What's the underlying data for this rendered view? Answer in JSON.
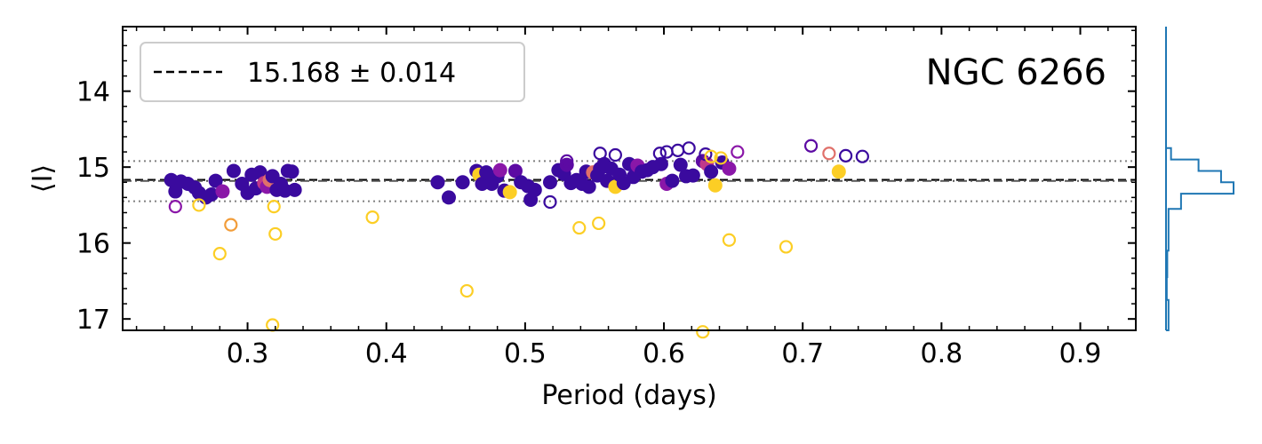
{
  "chart_data": {
    "type": "scatter",
    "title": "",
    "annotation": "NGC 6266",
    "xlabel": "Period (days)",
    "ylabel": "⟨I⟩",
    "xlim": [
      0.21,
      0.94
    ],
    "ylim": [
      17.15,
      13.15
    ],
    "y_inverted": true,
    "xticks": [
      0.3,
      0.4,
      0.5,
      0.6,
      0.7,
      0.8,
      0.9
    ],
    "xtick_labels": [
      "0.3",
      "0.4",
      "0.5",
      "0.6",
      "0.7",
      "0.8",
      "0.9"
    ],
    "yticks": [
      14,
      15,
      16,
      17
    ],
    "ytick_labels": [
      "14",
      "15",
      "16",
      "17"
    ],
    "grid": false,
    "legend": {
      "location": "top-left",
      "label": "15.168 ± 0.014"
    },
    "reference_lines": [
      {
        "value": 15.168,
        "style": "dashed",
        "color": "#000000"
      },
      {
        "value": 15.182,
        "style": "dash-dot",
        "color": "#555555"
      },
      {
        "value": 14.92,
        "style": "dotted",
        "color": "#808080"
      },
      {
        "value": 15.45,
        "style": "dotted",
        "color": "#808080"
      }
    ],
    "colors": {
      "c1": "#3a0a9e",
      "c2": "#5c0aa3",
      "c3": "#8a17a8",
      "c4": "#c0398a",
      "c5": "#e0706a",
      "c6": "#f29d3a",
      "c7": "#fcce25"
    },
    "points": [
      {
        "x": 0.245,
        "y": 15.17,
        "c": "c1",
        "f": true
      },
      {
        "x": 0.248,
        "y": 15.32,
        "c": "c1",
        "f": true
      },
      {
        "x": 0.252,
        "y": 15.19,
        "c": "c1",
        "f": true
      },
      {
        "x": 0.257,
        "y": 15.22,
        "c": "c1",
        "f": true
      },
      {
        "x": 0.262,
        "y": 15.27,
        "c": "c1",
        "f": true
      },
      {
        "x": 0.265,
        "y": 15.34,
        "c": "c1",
        "f": true
      },
      {
        "x": 0.27,
        "y": 15.4,
        "c": "c1",
        "f": true
      },
      {
        "x": 0.274,
        "y": 15.36,
        "c": "c1",
        "f": true
      },
      {
        "x": 0.277,
        "y": 15.18,
        "c": "c1",
        "f": true
      },
      {
        "x": 0.282,
        "y": 15.32,
        "c": "c3",
        "f": true
      },
      {
        "x": 0.29,
        "y": 15.05,
        "c": "c1",
        "f": true
      },
      {
        "x": 0.296,
        "y": 15.22,
        "c": "c1",
        "f": true
      },
      {
        "x": 0.3,
        "y": 15.34,
        "c": "c1",
        "f": true
      },
      {
        "x": 0.303,
        "y": 15.1,
        "c": "c1",
        "f": true
      },
      {
        "x": 0.306,
        "y": 15.28,
        "c": "c1",
        "f": true
      },
      {
        "x": 0.309,
        "y": 15.07,
        "c": "c1",
        "f": true
      },
      {
        "x": 0.312,
        "y": 15.21,
        "c": "c4",
        "f": true
      },
      {
        "x": 0.314,
        "y": 15.26,
        "c": "c3",
        "f": true
      },
      {
        "x": 0.316,
        "y": 15.17,
        "c": "c5",
        "f": true
      },
      {
        "x": 0.318,
        "y": 15.12,
        "c": "c1",
        "f": true
      },
      {
        "x": 0.321,
        "y": 15.3,
        "c": "c1",
        "f": true
      },
      {
        "x": 0.324,
        "y": 15.22,
        "c": "c1",
        "f": true
      },
      {
        "x": 0.327,
        "y": 15.31,
        "c": "c1",
        "f": true
      },
      {
        "x": 0.329,
        "y": 15.05,
        "c": "c1",
        "f": true
      },
      {
        "x": 0.332,
        "y": 15.06,
        "c": "c1",
        "f": true
      },
      {
        "x": 0.334,
        "y": 15.3,
        "c": "c1",
        "f": true
      },
      {
        "x": 0.248,
        "y": 15.52,
        "c": "c3",
        "f": false
      },
      {
        "x": 0.265,
        "y": 15.5,
        "c": "c7",
        "f": false
      },
      {
        "x": 0.288,
        "y": 15.76,
        "c": "c6",
        "f": false
      },
      {
        "x": 0.28,
        "y": 16.14,
        "c": "c7",
        "f": false
      },
      {
        "x": 0.319,
        "y": 15.52,
        "c": "c7",
        "f": false
      },
      {
        "x": 0.32,
        "y": 15.88,
        "c": "c7",
        "f": false
      },
      {
        "x": 0.318,
        "y": 17.08,
        "c": "c7",
        "f": false
      },
      {
        "x": 0.39,
        "y": 15.66,
        "c": "c7",
        "f": false
      },
      {
        "x": 0.437,
        "y": 15.2,
        "c": "c1",
        "f": true
      },
      {
        "x": 0.445,
        "y": 15.4,
        "c": "c1",
        "f": true
      },
      {
        "x": 0.455,
        "y": 15.2,
        "c": "c1",
        "f": true
      },
      {
        "x": 0.465,
        "y": 15.05,
        "c": "c1",
        "f": true
      },
      {
        "x": 0.467,
        "y": 15.1,
        "c": "c7",
        "f": true
      },
      {
        "x": 0.469,
        "y": 15.22,
        "c": "c1",
        "f": true
      },
      {
        "x": 0.472,
        "y": 15.07,
        "c": "c1",
        "f": true
      },
      {
        "x": 0.476,
        "y": 15.22,
        "c": "c1",
        "f": true
      },
      {
        "x": 0.48,
        "y": 15.12,
        "c": "c1",
        "f": true
      },
      {
        "x": 0.482,
        "y": 15.04,
        "c": "c3",
        "f": true
      },
      {
        "x": 0.485,
        "y": 15.31,
        "c": "c1",
        "f": true
      },
      {
        "x": 0.489,
        "y": 15.33,
        "c": "c7",
        "f": true
      },
      {
        "x": 0.493,
        "y": 15.05,
        "c": "c2",
        "f": true
      },
      {
        "x": 0.497,
        "y": 15.2,
        "c": "c1",
        "f": true
      },
      {
        "x": 0.502,
        "y": 15.25,
        "c": "c1",
        "f": true
      },
      {
        "x": 0.504,
        "y": 15.43,
        "c": "c1",
        "f": true
      },
      {
        "x": 0.507,
        "y": 15.3,
        "c": "c1",
        "f": true
      },
      {
        "x": 0.518,
        "y": 15.2,
        "c": "c1",
        "f": true
      },
      {
        "x": 0.524,
        "y": 15.04,
        "c": "c1",
        "f": true
      },
      {
        "x": 0.528,
        "y": 15.09,
        "c": "c1",
        "f": true
      },
      {
        "x": 0.53,
        "y": 14.97,
        "c": "c2",
        "f": true
      },
      {
        "x": 0.533,
        "y": 15.21,
        "c": "c1",
        "f": true
      },
      {
        "x": 0.537,
        "y": 15.17,
        "c": "c1",
        "f": true
      },
      {
        "x": 0.541,
        "y": 15.22,
        "c": "c1",
        "f": true
      },
      {
        "x": 0.544,
        "y": 15.06,
        "c": "c1",
        "f": true
      },
      {
        "x": 0.546,
        "y": 15.26,
        "c": "c1",
        "f": true
      },
      {
        "x": 0.549,
        "y": 15.07,
        "c": "c5",
        "f": true
      },
      {
        "x": 0.552,
        "y": 15.11,
        "c": "c1",
        "f": true
      },
      {
        "x": 0.554,
        "y": 15.02,
        "c": "c1",
        "f": true
      },
      {
        "x": 0.557,
        "y": 14.96,
        "c": "c1",
        "f": true
      },
      {
        "x": 0.559,
        "y": 15.18,
        "c": "c1",
        "f": true
      },
      {
        "x": 0.562,
        "y": 15.02,
        "c": "c1",
        "f": true
      },
      {
        "x": 0.565,
        "y": 15.26,
        "c": "c7",
        "f": true
      },
      {
        "x": 0.568,
        "y": 15.1,
        "c": "c1",
        "f": true
      },
      {
        "x": 0.571,
        "y": 15.21,
        "c": "c1",
        "f": true
      },
      {
        "x": 0.575,
        "y": 14.96,
        "c": "c1",
        "f": true
      },
      {
        "x": 0.578,
        "y": 15.13,
        "c": "c1",
        "f": true
      },
      {
        "x": 0.581,
        "y": 14.98,
        "c": "c3",
        "f": true
      },
      {
        "x": 0.584,
        "y": 15.06,
        "c": "c1",
        "f": true
      },
      {
        "x": 0.588,
        "y": 15.04,
        "c": "c1",
        "f": true
      },
      {
        "x": 0.592,
        "y": 15.0,
        "c": "c1",
        "f": true
      },
      {
        "x": 0.598,
        "y": 14.96,
        "c": "c1",
        "f": true
      },
      {
        "x": 0.602,
        "y": 15.22,
        "c": "c3",
        "f": true
      },
      {
        "x": 0.606,
        "y": 15.18,
        "c": "c1",
        "f": true
      },
      {
        "x": 0.612,
        "y": 14.97,
        "c": "c1",
        "f": true
      },
      {
        "x": 0.616,
        "y": 15.12,
        "c": "c1",
        "f": true
      },
      {
        "x": 0.621,
        "y": 15.11,
        "c": "c1",
        "f": true
      },
      {
        "x": 0.628,
        "y": 14.92,
        "c": "c2",
        "f": true
      },
      {
        "x": 0.631,
        "y": 14.96,
        "c": "c4",
        "f": true
      },
      {
        "x": 0.634,
        "y": 15.06,
        "c": "c1",
        "f": true
      },
      {
        "x": 0.637,
        "y": 15.24,
        "c": "c7",
        "f": true
      },
      {
        "x": 0.642,
        "y": 14.94,
        "c": "c1",
        "f": true
      },
      {
        "x": 0.647,
        "y": 15.02,
        "c": "c3",
        "f": true
      },
      {
        "x": 0.726,
        "y": 15.06,
        "c": "c7",
        "f": true
      },
      {
        "x": 0.518,
        "y": 15.46,
        "c": "c1",
        "f": false
      },
      {
        "x": 0.53,
        "y": 14.92,
        "c": "c2",
        "f": false
      },
      {
        "x": 0.554,
        "y": 14.82,
        "c": "c1",
        "f": false
      },
      {
        "x": 0.565,
        "y": 14.84,
        "c": "c1",
        "f": false
      },
      {
        "x": 0.597,
        "y": 14.82,
        "c": "c1",
        "f": false
      },
      {
        "x": 0.602,
        "y": 14.8,
        "c": "c1",
        "f": false
      },
      {
        "x": 0.61,
        "y": 14.78,
        "c": "c1",
        "f": false
      },
      {
        "x": 0.618,
        "y": 14.75,
        "c": "c1",
        "f": false
      },
      {
        "x": 0.63,
        "y": 14.83,
        "c": "c1",
        "f": false
      },
      {
        "x": 0.634,
        "y": 14.86,
        "c": "c7",
        "f": false
      },
      {
        "x": 0.641,
        "y": 14.88,
        "c": "c7",
        "f": false
      },
      {
        "x": 0.653,
        "y": 14.8,
        "c": "c3",
        "f": false
      },
      {
        "x": 0.706,
        "y": 14.72,
        "c": "c2",
        "f": false
      },
      {
        "x": 0.719,
        "y": 14.82,
        "c": "c5",
        "f": false
      },
      {
        "x": 0.731,
        "y": 14.85,
        "c": "c1",
        "f": false
      },
      {
        "x": 0.743,
        "y": 14.86,
        "c": "c1",
        "f": false
      },
      {
        "x": 0.458,
        "y": 16.63,
        "c": "c7",
        "f": false
      },
      {
        "x": 0.539,
        "y": 15.8,
        "c": "c7",
        "f": false
      },
      {
        "x": 0.553,
        "y": 15.74,
        "c": "c7",
        "f": false
      },
      {
        "x": 0.647,
        "y": 15.96,
        "c": "c7",
        "f": false
      },
      {
        "x": 0.688,
        "y": 16.05,
        "c": "c7",
        "f": false
      },
      {
        "x": 0.628,
        "y": 17.17,
        "c": "c7",
        "f": false
      }
    ],
    "histogram": {
      "orientation": "horizontal",
      "color": "#1f77b4",
      "bins": [
        {
          "y0": 14.75,
          "y1": 14.9,
          "count": 2
        },
        {
          "y0": 14.9,
          "y1": 15.05,
          "count": 13
        },
        {
          "y0": 15.05,
          "y1": 15.2,
          "count": 22
        },
        {
          "y0": 15.2,
          "y1": 15.35,
          "count": 27
        },
        {
          "y0": 15.35,
          "y1": 15.55,
          "count": 6
        },
        {
          "y0": 15.55,
          "y1": 15.75,
          "count": 1
        },
        {
          "y0": 15.75,
          "y1": 16.1,
          "count": 1
        },
        {
          "y0": 16.1,
          "y1": 16.45,
          "count": 0.5
        },
        {
          "y0": 16.45,
          "y1": 16.75,
          "count": 0.3
        },
        {
          "y0": 16.75,
          "y1": 17.15,
          "count": 1
        }
      ]
    }
  }
}
